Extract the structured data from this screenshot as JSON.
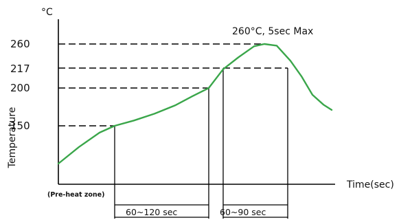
{
  "chart_data": {
    "type": "line",
    "title": "",
    "xlabel": "Time(sec)",
    "ylabel": "Temperature",
    "y_unit": "°C",
    "y_ticks": [
      150,
      200,
      217,
      260
    ],
    "series": [
      {
        "color": "#3aa64a",
        "points": [
          {
            "t": 0,
            "temp": 100
          },
          {
            "t": 30,
            "temp": 122
          },
          {
            "t": 60,
            "temp": 141
          },
          {
            "t": 82,
            "temp": 150
          },
          {
            "t": 110,
            "temp": 157
          },
          {
            "t": 140,
            "temp": 166
          },
          {
            "t": 170,
            "temp": 177
          },
          {
            "t": 195,
            "temp": 189
          },
          {
            "t": 219,
            "temp": 200
          },
          {
            "t": 240,
            "temp": 216
          },
          {
            "t": 262,
            "temp": 236
          },
          {
            "t": 285,
            "temp": 256
          },
          {
            "t": 300,
            "temp": 260
          },
          {
            "t": 318,
            "temp": 257
          },
          {
            "t": 338,
            "temp": 230
          },
          {
            "t": 354,
            "temp": 210
          },
          {
            "t": 370,
            "temp": 191
          },
          {
            "t": 386,
            "temp": 178
          },
          {
            "t": 398,
            "temp": 171
          }
        ]
      }
    ],
    "reference_lines": {
      "preheat_end_t": 82,
      "soak_end_t": 219,
      "liquidus_start_t": 240,
      "liquidus_end_t": 334,
      "peak_t": 300
    },
    "annotations": {
      "peak": "260°C, 5sec Max",
      "preheat_zone": "(Pre-heat zone)",
      "soak_duration": "60~120 sec",
      "liquidus_duration": "60~90 sec"
    }
  }
}
